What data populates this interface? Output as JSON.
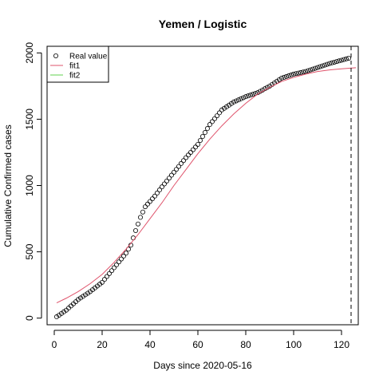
{
  "chart_data": {
    "type": "scatter",
    "title": "Yemen / Logistic",
    "xlabel": "Days since 2020-05-16",
    "ylabel": "Cumulative Confirmed cases",
    "xlim": [
      -3,
      127
    ],
    "ylim": [
      -50,
      2050
    ],
    "x_ticks": [
      0,
      20,
      40,
      60,
      80,
      100,
      120
    ],
    "y_ticks": [
      0,
      500,
      1000,
      1500,
      2000
    ],
    "grid": false,
    "legend": {
      "position": "top-left",
      "entries": [
        {
          "label": "Real value",
          "symbol": "open-circle",
          "color": "#000000"
        },
        {
          "label": "fit1",
          "symbol": "line",
          "color": "#df536b"
        },
        {
          "label": "fit2",
          "symbol": "line",
          "color": "#61d04f"
        }
      ]
    },
    "vline": {
      "x": 124,
      "style": "dashed",
      "color": "#000000"
    },
    "real_value_anchors": {
      "x": [
        1,
        5,
        10,
        15,
        20,
        25,
        30,
        32,
        34,
        36,
        38,
        40,
        42,
        45,
        50,
        55,
        60,
        65,
        70,
        75,
        80,
        85,
        90,
        95,
        100,
        105,
        110,
        115,
        120,
        123
      ],
      "y": [
        10,
        60,
        140,
        200,
        270,
        380,
        490,
        550,
        660,
        760,
        840,
        880,
        920,
        990,
        1100,
        1210,
        1310,
        1460,
        1570,
        1630,
        1670,
        1700,
        1750,
        1810,
        1840,
        1860,
        1890,
        1920,
        1945,
        1960
      ]
    },
    "series": [
      {
        "name": "fit1",
        "color": "#df536b",
        "x": [
          1,
          5,
          10,
          15,
          20,
          25,
          30,
          35,
          40,
          45,
          50,
          55,
          60,
          65,
          70,
          75,
          80,
          85,
          90,
          95,
          100,
          105,
          110,
          115,
          120,
          126
        ],
        "y": [
          115,
          150,
          200,
          260,
          330,
          420,
          520,
          630,
          750,
          870,
          1000,
          1120,
          1240,
          1350,
          1450,
          1540,
          1620,
          1690,
          1740,
          1785,
          1815,
          1840,
          1860,
          1872,
          1880,
          1888
        ]
      },
      {
        "name": "fit2",
        "color": "#61d04f",
        "x": [],
        "y": []
      }
    ]
  }
}
